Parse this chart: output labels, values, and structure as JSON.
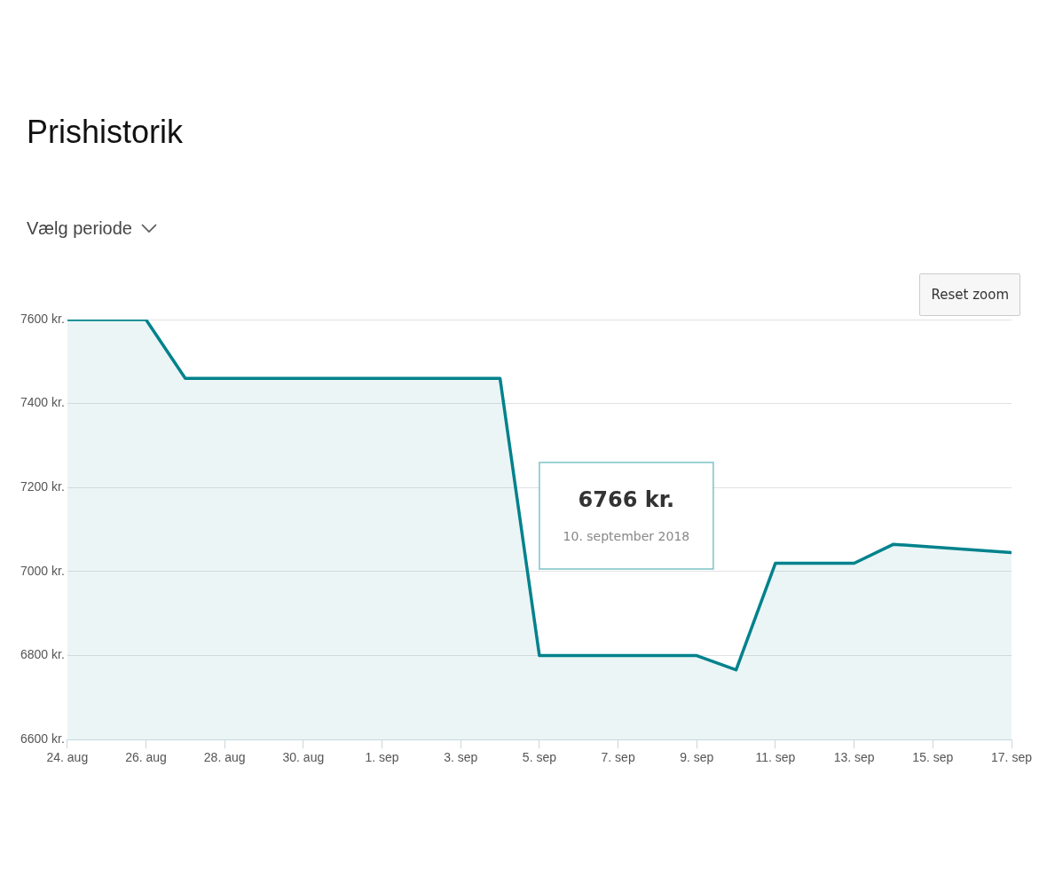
{
  "chart_data": {
    "type": "area",
    "title": "Prishistorik",
    "x": [
      "2018-08-24",
      "2018-08-26",
      "2018-08-27",
      "2018-09-04",
      "2018-09-05",
      "2018-09-09",
      "2018-09-10",
      "2018-09-11",
      "2018-09-13",
      "2018-09-14",
      "2018-09-17"
    ],
    "series": [
      {
        "color": "#00828c",
        "values": [
          7600,
          7600,
          7460,
          7460,
          6800,
          6800,
          6766,
          7020,
          7020,
          7065,
          7045
        ]
      }
    ],
    "xlim": [
      "2018-08-24",
      "2018-09-17"
    ],
    "xticks": [
      {
        "value": "2018-08-24",
        "label": "24. aug"
      },
      {
        "value": "2018-08-26",
        "label": "26. aug"
      },
      {
        "value": "2018-08-28",
        "label": "28. aug"
      },
      {
        "value": "2018-08-30",
        "label": "30. aug"
      },
      {
        "value": "2018-09-01",
        "label": "1. sep"
      },
      {
        "value": "2018-09-03",
        "label": "3. sep"
      },
      {
        "value": "2018-09-05",
        "label": "5. sep"
      },
      {
        "value": "2018-09-07",
        "label": "7. sep"
      },
      {
        "value": "2018-09-09",
        "label": "9. sep"
      },
      {
        "value": "2018-09-11",
        "label": "11. sep"
      },
      {
        "value": "2018-09-13",
        "label": "13. sep"
      },
      {
        "value": "2018-09-15",
        "label": "15. sep"
      },
      {
        "value": "2018-09-17",
        "label": "17. sep"
      }
    ],
    "ylim": [
      6600,
      7600
    ],
    "yticks": [
      {
        "value": 6600,
        "label": "6600 kr."
      },
      {
        "value": 6800,
        "label": "6800 kr."
      },
      {
        "value": 7000,
        "label": "7000 kr."
      },
      {
        "value": 7200,
        "label": "7200 kr."
      },
      {
        "value": 7400,
        "label": "7400 kr."
      },
      {
        "value": 7600,
        "label": "7600 kr."
      }
    ],
    "grid": "y",
    "legend": false,
    "marker": "none",
    "line_style": "solid",
    "annotations": [
      "6766 kr.",
      "10. september 2018",
      "Vælg periode",
      "Reset zoom"
    ]
  }
}
